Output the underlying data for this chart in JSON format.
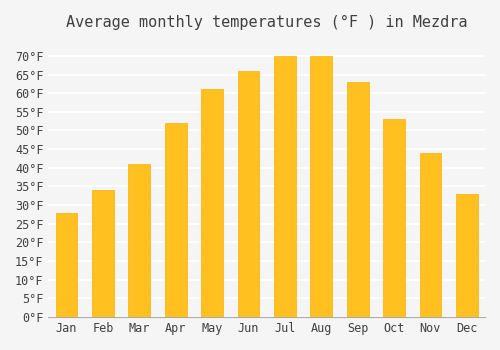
{
  "title": "Average monthly temperatures (°F ) in Mezdra",
  "months": [
    "Jan",
    "Feb",
    "Mar",
    "Apr",
    "May",
    "Jun",
    "Jul",
    "Aug",
    "Sep",
    "Oct",
    "Nov",
    "Dec"
  ],
  "values": [
    28,
    34,
    41,
    52,
    61,
    66,
    70,
    70,
    63,
    53,
    44,
    33
  ],
  "bar_color": "#FFC020",
  "bar_edge_color": "#FFB000",
  "background_color": "#F5F5F5",
  "grid_color": "#FFFFFF",
  "text_color": "#404040",
  "ylim": [
    0,
    74
  ],
  "yticks": [
    0,
    5,
    10,
    15,
    20,
    25,
    30,
    35,
    40,
    45,
    50,
    55,
    60,
    65,
    70
  ],
  "ylabel_suffix": "°F",
  "title_fontsize": 11,
  "tick_fontsize": 8.5,
  "font_family": "monospace"
}
